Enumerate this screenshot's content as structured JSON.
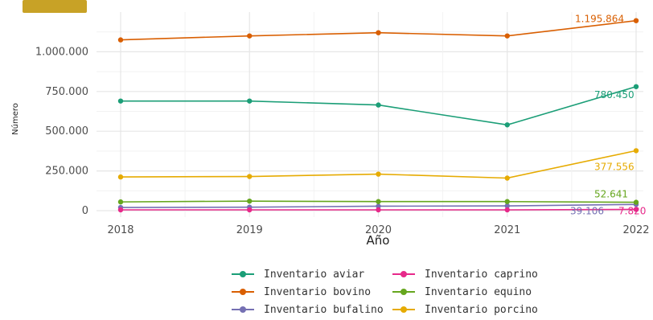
{
  "chart_data": {
    "type": "line",
    "xlabel": "Año",
    "ylabel": "Número",
    "x": [
      "2018",
      "2019",
      "2020",
      "2021",
      "2022"
    ],
    "ylim": [
      0,
      1250000
    ],
    "yticks": [
      "0",
      "250.000",
      "500.000",
      "750.000",
      "1.000.000"
    ],
    "ytick_values": [
      0,
      250000,
      500000,
      750000,
      1000000
    ],
    "grid": true,
    "legend_position": "bottom",
    "series": [
      {
        "name": "Inventario aviar",
        "color": "#1b9e77",
        "values": [
          690000,
          690000,
          665000,
          540000,
          780450
        ],
        "end_label": "780.450"
      },
      {
        "name": "Inventario bovino",
        "color": "#d95f02",
        "values": [
          1075000,
          1100000,
          1120000,
          1100000,
          1195864
        ],
        "end_label": "1.195.864"
      },
      {
        "name": "Inventario bufalino",
        "color": "#7570b3",
        "values": [
          20000,
          22000,
          28000,
          30000,
          39106
        ],
        "end_label": "39.106"
      },
      {
        "name": "Inventario caprino",
        "color": "#e7298a",
        "values": [
          5000,
          5000,
          5000,
          5000,
          7820
        ],
        "end_label": "7.820"
      },
      {
        "name": "Inventario equino",
        "color": "#66a61e",
        "values": [
          55000,
          60000,
          57000,
          57000,
          52641
        ],
        "end_label": "52.641"
      },
      {
        "name": "Inventario porcino",
        "color": "#e6ab02",
        "values": [
          212000,
          215000,
          230000,
          205000,
          377556
        ],
        "end_label": "377.556"
      }
    ],
    "legend_order": [
      0,
      3,
      1,
      4,
      2,
      5
    ]
  }
}
